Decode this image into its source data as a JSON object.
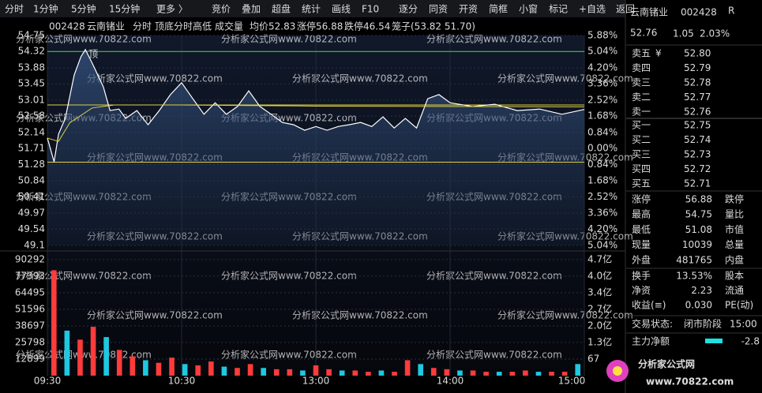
{
  "toolbar": {
    "tabs": [
      "分时",
      "1分钟",
      "5分钟",
      "15分钟",
      "更多 〉"
    ],
    "buttons": [
      "竞价",
      "叠加",
      "超盘",
      "统计",
      "画线",
      "F10",
      "逐分",
      "同资",
      "开资",
      "简框",
      "小窗",
      "标记",
      "+自选",
      "返回"
    ]
  },
  "header": {
    "code": "002428",
    "name": "云南锗业",
    "labels": [
      "分时",
      "顶底分时高低",
      "成交量"
    ],
    "avg_label": "均价",
    "avg": "52.83",
    "limit_up_label": "涨停",
    "limit_up": "56.88",
    "limit_down_label": "跌停",
    "limit_down": "46.54",
    "cage": "笼子(53.82 51.70)"
  },
  "watermark": "分析家公式网www.70822.com",
  "price_chart": {
    "xlim": [
      0,
      240
    ],
    "ylim": [
      49.1,
      54.75
    ],
    "yticks": [
      54.75,
      54.32,
      53.88,
      53.45,
      53.01,
      52.58,
      52.14,
      51.71,
      51.28,
      50.84,
      50.41,
      49.97,
      49.54,
      49.1
    ],
    "pct_labels": [
      "5.88%",
      "5.04%",
      "4.20%",
      "3.36%",
      "2.52%",
      "1.68%",
      "0.84%",
      "0.00%",
      "0.84%",
      "1.68%",
      "2.52%",
      "3.36%",
      "4.20%",
      "5.04%"
    ],
    "minutes": [
      0,
      3,
      5,
      8,
      12,
      15,
      17,
      20,
      25,
      28,
      32,
      35,
      40,
      45,
      50,
      55,
      60,
      65,
      70,
      75,
      80,
      85,
      90,
      95,
      100,
      105,
      110,
      115,
      120,
      125,
      130,
      135,
      140,
      145,
      150,
      155,
      160,
      165,
      170,
      175,
      180,
      190,
      200,
      210,
      220,
      230,
      240
    ],
    "prices": [
      51.99,
      51.35,
      52.1,
      52.52,
      53.69,
      54.18,
      54.37,
      54.01,
      53.37,
      52.73,
      52.77,
      52.52,
      52.73,
      52.35,
      52.73,
      53.16,
      53.48,
      53.05,
      52.63,
      52.94,
      52.63,
      52.84,
      53.26,
      52.84,
      52.63,
      52.41,
      52.35,
      52.2,
      52.3,
      52.2,
      52.3,
      52.35,
      52.41,
      52.3,
      52.56,
      52.26,
      52.52,
      52.26,
      53.05,
      53.16,
      52.94,
      52.84,
      52.9,
      52.73,
      52.77,
      52.63,
      52.76
    ],
    "avg_minutes": [
      0,
      5,
      10,
      20,
      30,
      60,
      120,
      240
    ],
    "avg_prices": [
      51.99,
      51.9,
      52.4,
      52.8,
      52.88,
      52.88,
      52.85,
      52.83
    ],
    "top_line": 54.32,
    "upper_line": 52.88,
    "lower_line": 51.34,
    "peak_label": "顶",
    "peak_minute": 17,
    "time_labels": [
      {
        "value": 0,
        "label": "09:30"
      },
      {
        "value": 60,
        "label": "10:30"
      },
      {
        "value": 120,
        "label": "13:00"
      },
      {
        "value": 180,
        "label": "14:00"
      },
      {
        "value": 240,
        "label": "15:00"
      }
    ]
  },
  "volume_chart": {
    "ylim": [
      0,
      97000
    ],
    "yticks": [
      90292,
      77393,
      64495,
      51596,
      38697,
      25798,
      12899
    ],
    "right_labels": [
      "4.7亿",
      "4.0亿",
      "3.4亿",
      "2.7亿",
      "2.0亿",
      "1.3亿",
      "67"
    ],
    "values": [
      82000,
      35000,
      28000,
      38000,
      30000,
      20000,
      15000,
      12000,
      10000,
      14000,
      9000,
      8000,
      11000,
      7000,
      6000,
      9000,
      6000,
      5000,
      5000,
      4000,
      8000,
      5000,
      4000,
      4000,
      3000,
      4000,
      3000,
      12000,
      9000,
      6000,
      5000,
      4000,
      4000,
      3000,
      3000,
      3000,
      4000,
      3000,
      3000,
      3000,
      9000
    ]
  },
  "quote": {
    "name": "云南锗业",
    "code": "002428",
    "badge": "R",
    "price": "52.76",
    "change": "1.05",
    "pct": "2.03%"
  },
  "order_book": {
    "currency": "¥",
    "asks": [
      {
        "label": "卖五",
        "price": "52.80"
      },
      {
        "label": "卖四",
        "price": "52.79"
      },
      {
        "label": "卖三",
        "price": "52.78"
      },
      {
        "label": "卖二",
        "price": "52.77"
      },
      {
        "label": "卖一",
        "price": "52.76"
      }
    ],
    "bids": [
      {
        "label": "买一",
        "price": "52.75"
      },
      {
        "label": "买二",
        "price": "52.74"
      },
      {
        "label": "买三",
        "price": "52.73"
      },
      {
        "label": "买四",
        "price": "52.72"
      },
      {
        "label": "买五",
        "price": "52.71"
      }
    ]
  },
  "stats": [
    {
      "label": "涨停",
      "value": "56.88",
      "label2": "跌停",
      "color": "#ff3b3b"
    },
    {
      "label": "最高",
      "value": "54.75",
      "label2": "量比",
      "color": "#ff3b3b"
    },
    {
      "label": "最低",
      "value": "51.08",
      "label2": "市值",
      "color": "#1ec8e0"
    },
    {
      "label": "现量",
      "value": "10039",
      "label2": "总量",
      "color": "#d040d0"
    },
    {
      "label": "外盘",
      "value": "481765",
      "label2": "内盘",
      "color": "#ff3b3b"
    }
  ],
  "stats2": [
    {
      "label": "换手",
      "value": "13.53%",
      "label2": "股本"
    },
    {
      "label": "净资",
      "value": "2.23",
      "label2": "流通"
    },
    {
      "label": "收益(≡)",
      "value": "0.030",
      "label2": "PE(动)"
    }
  ],
  "status": {
    "label": "交易状态:",
    "value": "闭市阶段",
    "time": "15:00"
  },
  "main_flow": {
    "label": "主力净额",
    "value": "-2.8"
  },
  "logo": {
    "name": "分析家公式网",
    "url": "www.70822.com"
  }
}
